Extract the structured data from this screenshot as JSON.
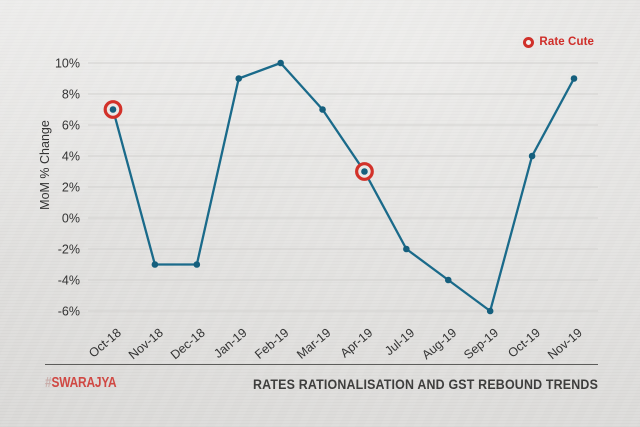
{
  "page": {
    "background_color": "#e6e5e3"
  },
  "legend": {
    "label": "Rate Cute",
    "marker": "red-donut-circle-icon",
    "color": "#cf2d28"
  },
  "footer": {
    "watermark_hash": "#",
    "watermark_name": "SWARAJYA",
    "watermark_color": "#d04843",
    "title": "RATES RATIONALISATION AND GST REBOUND TRENDS"
  },
  "chart_data": {
    "type": "line",
    "title": "",
    "xlabel": "",
    "ylabel": "MoM % Change",
    "categories": [
      "Oct-18",
      "Nov-18",
      "Dec-18",
      "Jan-19",
      "Feb-19",
      "Mar-19",
      "Apr-19",
      "Jul-19",
      "Aug-19",
      "Sep-19",
      "Oct-19",
      "Nov-19"
    ],
    "values": [
      7,
      -3,
      -3,
      9,
      10,
      7,
      3,
      -2,
      -4,
      -6,
      4,
      9
    ],
    "ylim": [
      -6,
      10
    ],
    "ytick_step": 2,
    "ytick_labels": [
      "10%",
      "8%",
      "6%",
      "4%",
      "2%",
      "0%",
      "-2%",
      "-4%",
      "-6%"
    ],
    "grid": true,
    "grid_axis": "y",
    "legend_position": "top-right",
    "line_color": "#1a6a8a",
    "marker_color": "#155f7d",
    "grid_color": "#d3d2d0",
    "tick_color": "#333333",
    "annotation_color": "#d23129",
    "annotated_points": [
      {
        "category": "Oct-18",
        "value": 7,
        "meaning": "Rate Cute"
      },
      {
        "category": "Apr-19",
        "value": 3,
        "meaning": "Rate Cute"
      }
    ]
  }
}
